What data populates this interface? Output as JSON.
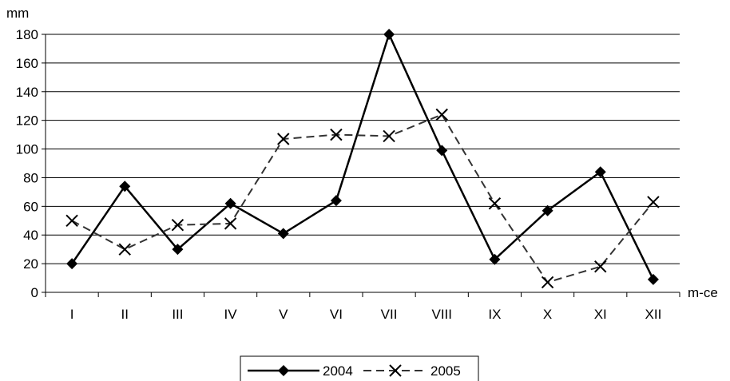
{
  "chart_data": {
    "type": "line",
    "title": "",
    "ylabel": "mm",
    "xlabel": "m-ce",
    "categories": [
      "I",
      "II",
      "III",
      "IV",
      "V",
      "VI",
      "VII",
      "VIII",
      "IX",
      "X",
      "XI",
      "XII"
    ],
    "ylim": [
      0,
      180
    ],
    "yticks": [
      0,
      20,
      40,
      60,
      80,
      100,
      120,
      140,
      160,
      180
    ],
    "grid": true,
    "legend_position": "bottom",
    "series": [
      {
        "name": "2004",
        "values": [
          20,
          74,
          30,
          62,
          41,
          64,
          180,
          99,
          23,
          57,
          84,
          9
        ],
        "color": "#000000",
        "line_style": "solid",
        "marker": "diamond"
      },
      {
        "name": "2005",
        "values": [
          50,
          30,
          47,
          48,
          107,
          110,
          109,
          124,
          62,
          7,
          18,
          63
        ],
        "color": "#333333",
        "line_style": "dashed",
        "marker": "x"
      }
    ]
  }
}
